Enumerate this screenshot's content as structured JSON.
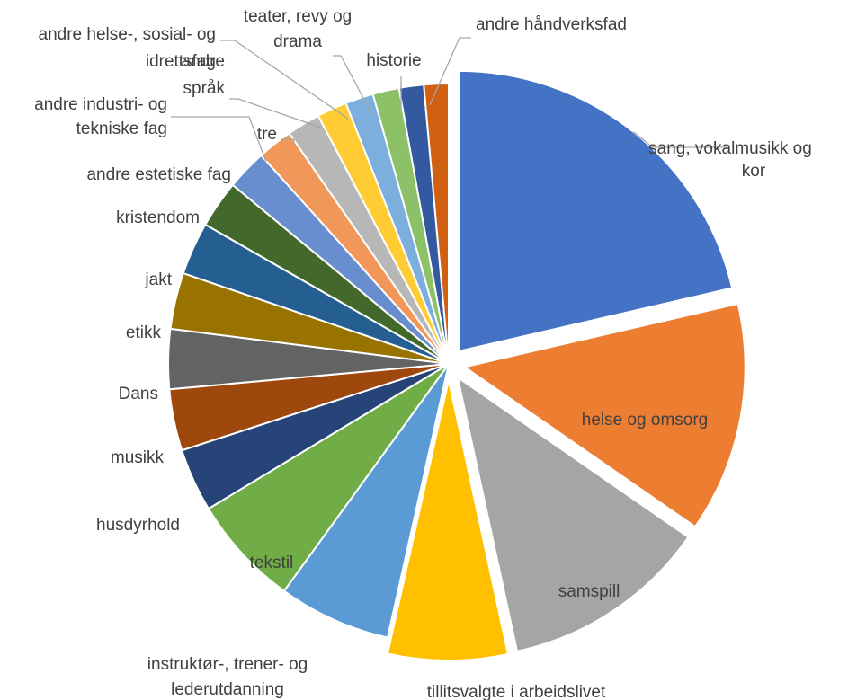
{
  "chart_data": {
    "type": "pie",
    "title": "",
    "legend": "none",
    "exploded_slices": [
      "sang, vokalmusikk og kor",
      "helse og omsorg",
      "samspill",
      "tillitsvalgte i arbeidslivet"
    ],
    "slices": [
      {
        "label": "sang, vokalmusikk og kor",
        "value": 21.1,
        "color": "#4472C4"
      },
      {
        "label": "helse og omsorg",
        "value": 13.1,
        "color": "#ED7D31"
      },
      {
        "label": "samspill",
        "value": 11.8,
        "color": "#A5A5A5"
      },
      {
        "label": "tillitsvalgte i arbeidslivet",
        "value": 6.8,
        "color": "#FFC000"
      },
      {
        "label": "instruktør-, trener- og lederutdanning",
        "value": 6.4,
        "color": "#5B9BD5"
      },
      {
        "label": "tekstil",
        "value": 6.3,
        "color": "#70AD47"
      },
      {
        "label": "husdyrhold",
        "value": 3.6,
        "color": "#264478"
      },
      {
        "label": "musikk",
        "value": 3.5,
        "color": "#9E480E"
      },
      {
        "label": "Dans",
        "value": 3.4,
        "color": "#636363"
      },
      {
        "label": "etikk",
        "value": 3.2,
        "color": "#997300"
      },
      {
        "label": "jakt",
        "value": 3.0,
        "color": "#255E91"
      },
      {
        "label": "kristendom",
        "value": 2.7,
        "color": "#43682B"
      },
      {
        "label": "andre estetiske fag",
        "value": 2.3,
        "color": "#698ED0"
      },
      {
        "label": "andre industri- og tekniske fag",
        "value": 2.0,
        "color": "#F1975A"
      },
      {
        "label": "tre",
        "value": 1.9,
        "color": "#B7B7B7"
      },
      {
        "label": "andre språk",
        "value": 1.7,
        "color": "#FFCD33"
      },
      {
        "label": "andre helse-, sosial- og idrettsfag",
        "value": 1.6,
        "color": "#7CAFDD"
      },
      {
        "label": "teater, revy og drama",
        "value": 1.5,
        "color": "#8CC168"
      },
      {
        "label": "historie",
        "value": 1.4,
        "color": "#335AA1"
      },
      {
        "label": "andre håndverksfad",
        "value": 1.4,
        "color": "#D26012"
      }
    ]
  }
}
